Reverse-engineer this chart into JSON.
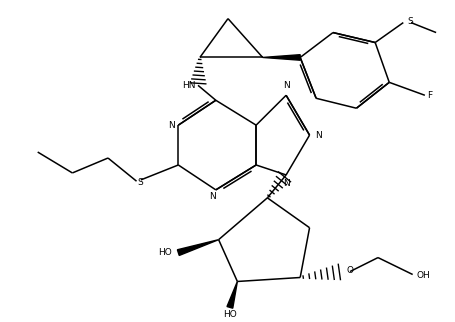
{
  "figsize": [
    4.56,
    3.22
  ],
  "dpi": 100,
  "bg_color": "white",
  "lw": 1.1,
  "bond_color": "black",
  "font_size": 6.5,
  "xlim": [
    0,
    10
  ],
  "ylim": [
    0,
    7.5
  ]
}
